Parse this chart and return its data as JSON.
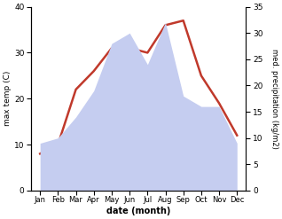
{
  "months": [
    "Jan",
    "Feb",
    "Mar",
    "Apr",
    "May",
    "Jun",
    "Jul",
    "Aug",
    "Sep",
    "Oct",
    "Nov",
    "Dec"
  ],
  "month_x": [
    0,
    1,
    2,
    3,
    4,
    5,
    6,
    7,
    8,
    9,
    10,
    11
  ],
  "max_temp": [
    8,
    10,
    22,
    26,
    31,
    31,
    30,
    36,
    37,
    25,
    19,
    12
  ],
  "precipitation": [
    9,
    10,
    14,
    19,
    28,
    30,
    24,
    32,
    18,
    16,
    16,
    9
  ],
  "temp_ylim": [
    0,
    40
  ],
  "precip_ylim": [
    0,
    35
  ],
  "temp_color": "#c0392b",
  "precip_fill_color": "#c5cdf0",
  "xlabel": "date (month)",
  "ylabel_left": "max temp (C)",
  "ylabel_right": "med. precipitation (kg/m2)",
  "temp_linewidth": 1.8,
  "background_color": "#ffffff"
}
